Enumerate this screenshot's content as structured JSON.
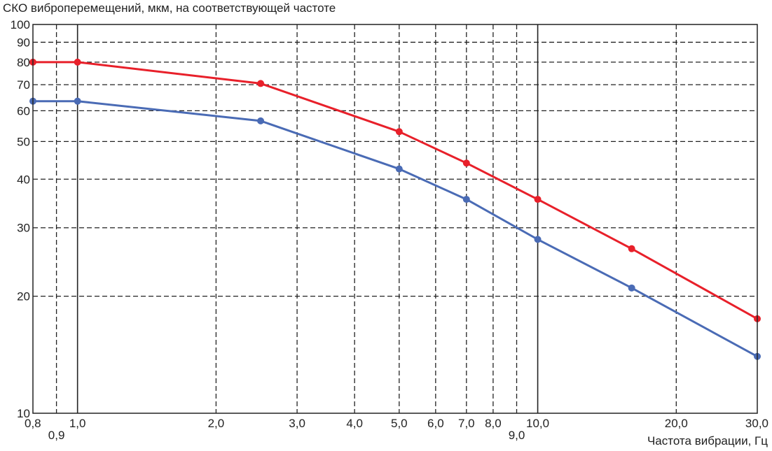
{
  "chart_data": {
    "type": "line",
    "title": "СКО виброперемещений, мкм, на соответствующей частоте",
    "xlabel": "Частота вибрации, Гц",
    "ylabel": "",
    "x_scale": "log",
    "y_scale": "log",
    "xlim": [
      0.8,
      30.0
    ],
    "ylim": [
      10,
      100
    ],
    "x_ticks": [
      {
        "value": 0.8,
        "label": "0,8"
      },
      {
        "value": 0.9,
        "label": "0,9"
      },
      {
        "value": 1.0,
        "label": "1,0"
      },
      {
        "value": 2.0,
        "label": "2,0"
      },
      {
        "value": 3.0,
        "label": "3,0"
      },
      {
        "value": 4.0,
        "label": "4,0"
      },
      {
        "value": 5.0,
        "label": "5,0"
      },
      {
        "value": 6.0,
        "label": "6,0"
      },
      {
        "value": 7.0,
        "label": "7,0"
      },
      {
        "value": 8.0,
        "label": "8,0"
      },
      {
        "value": 9.0,
        "label": "9,0"
      },
      {
        "value": 10.0,
        "label": "10,0"
      },
      {
        "value": 20.0,
        "label": "20,0"
      },
      {
        "value": 30.0,
        "label": "30,0"
      }
    ],
    "y_ticks": [
      {
        "value": 10,
        "label": "10"
      },
      {
        "value": 20,
        "label": "20"
      },
      {
        "value": 30,
        "label": "30"
      },
      {
        "value": 40,
        "label": "40"
      },
      {
        "value": 50,
        "label": "50"
      },
      {
        "value": 60,
        "label": "60"
      },
      {
        "value": 70,
        "label": "70"
      },
      {
        "value": 80,
        "label": "80"
      },
      {
        "value": 90,
        "label": "90"
      },
      {
        "value": 100,
        "label": "100"
      }
    ],
    "grid": true,
    "x_solid_lines": [
      1.0,
      10.0
    ],
    "series": [
      {
        "color": "#e8202a",
        "x": [
          0.8,
          1.0,
          2.5,
          5.0,
          7.0,
          10.0,
          16.0,
          30.0
        ],
        "y": [
          80,
          80,
          70.5,
          53,
          44,
          35.5,
          26.5,
          17.5
        ]
      },
      {
        "color": "#4a6bb5",
        "x": [
          0.8,
          1.0,
          2.5,
          5.0,
          7.0,
          10.0,
          16.0,
          30.0
        ],
        "y": [
          63.5,
          63.5,
          56.5,
          42.5,
          35.5,
          28,
          21,
          14
        ]
      }
    ]
  }
}
